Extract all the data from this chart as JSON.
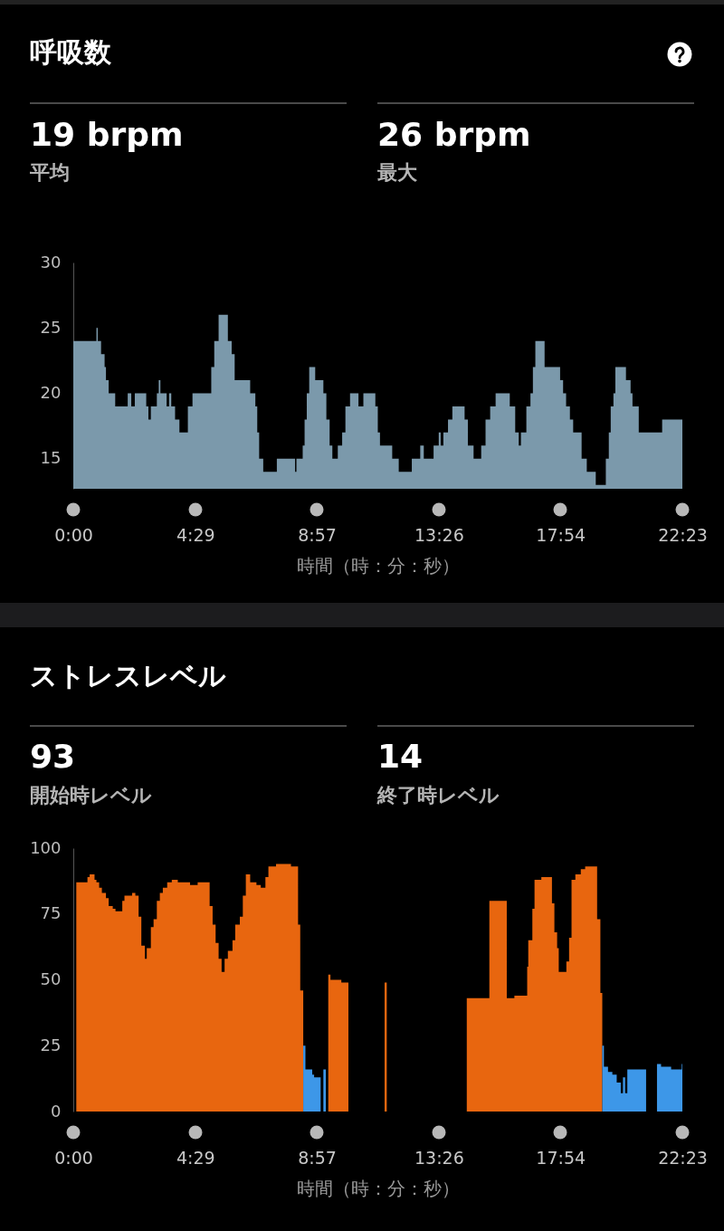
{
  "chart_data": [
    {
      "type": "area",
      "title": "呼吸数",
      "annotations": [
        "19 brpm",
        "平均",
        "26 brpm",
        "最大"
      ],
      "xlabel": "時間（時：分：秒）",
      "color": "#7b99ab",
      "x": [
        0,
        0.85,
        0.9,
        1.02,
        1.15,
        1.2,
        1.3,
        1.54,
        2.0,
        2.13,
        2.26,
        2.68,
        2.76,
        2.85,
        3.07,
        3.14,
        3.2,
        3.43,
        3.52,
        3.6,
        3.74,
        3.9,
        4.21,
        4.38,
        5.07,
        5.18,
        5.34,
        5.68,
        5.82,
        5.93,
        6.5,
        6.69,
        6.76,
        6.83,
        6.98,
        7.48,
        8.15,
        8.2,
        8.43,
        8.5,
        8.58,
        8.67,
        8.89,
        9.19,
        9.3,
        9.42,
        9.52,
        9.72,
        9.88,
        10.0,
        10.17,
        10.48,
        10.66,
        11.1,
        11.19,
        11.27,
        11.72,
        11.96,
        12.44,
        12.75,
        12.88,
        13.24,
        13.43,
        13.5,
        13.6,
        13.77,
        13.93,
        14.38,
        14.5,
        14.71,
        14.99,
        15.15,
        15.32,
        15.52,
        16.04,
        16.24,
        16.37,
        16.45,
        16.65,
        16.8,
        16.89,
        16.98,
        17.32,
        17.89,
        18.0,
        18.11,
        18.25,
        18.37,
        18.68,
        18.87,
        19.2,
        19.57,
        19.68,
        19.75,
        19.85,
        19.92,
        20.31,
        20.48,
        20.55,
        20.78,
        21.64,
        22.383
      ],
      "values": [
        24,
        25,
        24,
        23,
        22,
        21,
        20,
        19,
        20,
        19,
        20,
        19,
        18,
        19,
        20,
        21,
        20,
        19,
        20,
        19,
        18,
        17,
        19,
        20,
        22,
        24,
        26,
        24,
        23,
        21,
        20,
        19,
        17,
        15,
        14,
        15,
        14,
        15,
        16,
        18,
        20,
        22,
        21,
        20,
        18,
        16,
        15,
        16,
        17,
        19,
        20,
        19,
        20,
        19,
        17,
        16,
        15,
        14,
        15,
        16,
        15,
        16,
        17,
        16,
        17,
        18,
        19,
        18,
        16,
        15,
        16,
        18,
        19,
        20,
        19,
        17,
        16,
        17,
        19,
        20,
        22,
        24,
        22,
        21,
        20,
        19,
        18,
        17,
        15,
        14,
        13,
        15,
        17,
        19,
        20,
        22,
        21,
        20,
        19,
        17,
        18,
        18
      ],
      "xlim": [
        0,
        22.383
      ],
      "xticks": [
        {
          "value": 0,
          "label": "0:00"
        },
        {
          "value": 4.483,
          "label": "4:29"
        },
        {
          "value": 8.95,
          "label": "8:57"
        },
        {
          "value": 13.433,
          "label": "13:26"
        },
        {
          "value": 17.9,
          "label": "17:54"
        },
        {
          "value": 22.383,
          "label": "22:23"
        }
      ],
      "ylim": [
        12.7,
        30
      ],
      "yticks": [
        15,
        20,
        25,
        30
      ]
    },
    {
      "type": "area",
      "title": "ストレスレベル",
      "annotations": [
        "93",
        "開始時レベル",
        "14",
        "終了時レベル"
      ],
      "xlabel": "時間（時：分：秒）",
      "series": [
        {
          "color": "#e8660f",
          "x": [
            0.11,
            0.52,
            0.6,
            0.78,
            0.85,
            0.95,
            1.05,
            1.2,
            1.3,
            1.45,
            1.55,
            1.8,
            1.88,
            2.16,
            2.28,
            2.4,
            2.5,
            2.63,
            2.7,
            2.85,
            2.95,
            3.07,
            3.18,
            3.29,
            3.45,
            3.62,
            3.84,
            4.29,
            4.4,
            4.57,
            4.79,
            5.01,
            5.12,
            5.23,
            5.34,
            5.45,
            5.56,
            5.68,
            5.85,
            5.95,
            6.12,
            6.23,
            6.34,
            6.5,
            6.73,
            6.89,
            7.06,
            7.17,
            7.45,
            8.0,
            8.26,
            8.34,
            8.45,
            8.5,
            9.37,
            9.45,
            9.85,
            10.11,
            10.2,
            11.44,
            11.52,
            11.6,
            14.46,
            15.29,
            15.93,
            16.21,
            16.68,
            16.72,
            16.87,
            16.95,
            17.2,
            17.59,
            17.68,
            17.78,
            17.84,
            18.12,
            18.22,
            18.31,
            18.45,
            18.65,
            18.81,
            19.25,
            19.37,
            19.44
          ],
          "values": [
            87,
            89,
            90,
            88,
            87,
            85,
            83,
            81,
            78,
            77,
            76,
            80,
            82,
            83,
            82,
            74,
            63,
            58,
            62,
            70,
            73,
            80,
            83,
            85,
            87,
            88,
            87,
            86,
            86,
            87,
            87,
            78,
            71,
            64,
            58,
            53,
            58,
            61,
            65,
            71,
            74,
            82,
            90,
            87,
            86,
            85,
            89,
            93,
            94,
            93,
            71,
            46,
            46,
            null,
            52,
            50,
            49,
            49,
            null,
            49,
            49,
            null,
            43,
            80,
            43,
            44,
            55,
            65,
            77,
            88,
            89,
            79,
            68,
            62,
            53,
            57,
            66,
            88,
            90,
            92,
            93,
            73,
            45,
            45
          ]
        },
        {
          "color": "#3d97e8",
          "x": [
            8.45,
            8.53,
            8.78,
            8.85,
            9.09,
            9.12,
            9.19,
            9.28,
            9.3,
            19.44,
            19.5,
            19.65,
            19.81,
            19.97,
            20.12,
            20.2,
            20.28,
            20.36,
            21.05,
            21.1,
            21.45,
            21.6,
            21.97,
            22.36,
            22.383
          ],
          "values": [
            25,
            16,
            14,
            13,
            13,
            null,
            16,
            16,
            null,
            25,
            17,
            15,
            14,
            11,
            7,
            13,
            7,
            16,
            16,
            null,
            18,
            17,
            16,
            18,
            18
          ]
        }
      ],
      "xlim": [
        0,
        22.383
      ],
      "xticks": [
        {
          "value": 0,
          "label": "0:00"
        },
        {
          "value": 4.483,
          "label": "4:29"
        },
        {
          "value": 8.95,
          "label": "8:57"
        },
        {
          "value": 13.433,
          "label": "13:26"
        },
        {
          "value": 17.9,
          "label": "17:54"
        },
        {
          "value": 22.383,
          "label": "22:23"
        }
      ],
      "ylim": [
        0,
        100
      ],
      "yticks": [
        0,
        25,
        50,
        75,
        100
      ]
    }
  ]
}
